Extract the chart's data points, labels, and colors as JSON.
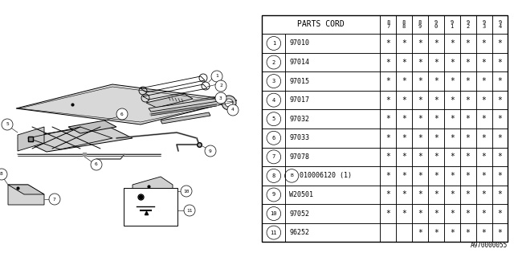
{
  "footnote": "A970000055",
  "table": {
    "header_label": "PARTS CORD",
    "year_cols": [
      "8\n7",
      "8\n8",
      "8\n9",
      "9\n0",
      "9\n1",
      "9\n2",
      "9\n3",
      "9\n4"
    ],
    "rows": [
      {
        "num": "1",
        "part": "97010",
        "marks": [
          1,
          1,
          1,
          1,
          1,
          1,
          1,
          1
        ]
      },
      {
        "num": "2",
        "part": "97014",
        "marks": [
          1,
          1,
          1,
          1,
          1,
          1,
          1,
          1
        ]
      },
      {
        "num": "3",
        "part": "97015",
        "marks": [
          1,
          1,
          1,
          1,
          1,
          1,
          1,
          1
        ]
      },
      {
        "num": "4",
        "part": "97017",
        "marks": [
          1,
          1,
          1,
          1,
          1,
          1,
          1,
          1
        ]
      },
      {
        "num": "5",
        "part": "97032",
        "marks": [
          1,
          1,
          1,
          1,
          1,
          1,
          1,
          1
        ]
      },
      {
        "num": "6",
        "part": "97033",
        "marks": [
          1,
          1,
          1,
          1,
          1,
          1,
          1,
          1
        ]
      },
      {
        "num": "7",
        "part": "97078",
        "marks": [
          1,
          1,
          1,
          1,
          1,
          1,
          1,
          1
        ]
      },
      {
        "num": "8",
        "part": "010006120 (1)",
        "marks": [
          1,
          1,
          1,
          1,
          1,
          1,
          1,
          1
        ],
        "b_prefix": true
      },
      {
        "num": "9",
        "part": "W20501",
        "marks": [
          1,
          1,
          1,
          1,
          1,
          1,
          1,
          1
        ]
      },
      {
        "num": "10",
        "part": "97052",
        "marks": [
          1,
          1,
          1,
          1,
          1,
          1,
          1,
          1
        ]
      },
      {
        "num": "11",
        "part": "96252",
        "marks": [
          0,
          0,
          1,
          1,
          1,
          1,
          1,
          1
        ]
      }
    ]
  },
  "bg_color": "#ffffff",
  "line_color": "#000000",
  "text_color": "#000000"
}
